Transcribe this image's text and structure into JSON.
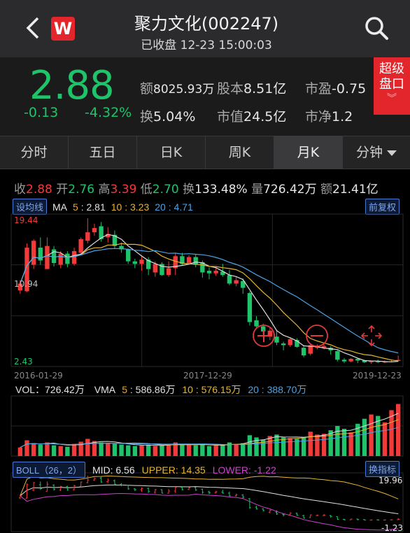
{
  "header": {
    "title": "聚力文化(002247)",
    "subtitle": "已收盘 12-23 15:00:03",
    "logo_letter": "W"
  },
  "quote": {
    "price": "2.88",
    "change": "-0.13",
    "change_pct": "-4.32%",
    "turnover_amount_label": "额",
    "turnover_amount": "8025.93万",
    "share_capital_label": "股本",
    "share_capital": "8.51亿",
    "pe_label": "市盈",
    "pe": "-0.75",
    "turnover_rate_label": "换",
    "turnover_rate": "5.04%",
    "market_cap_label": "市值",
    "market_cap": "24.5亿",
    "pb_label": "市净",
    "pb": "1.2",
    "super_badge_line1": "超级",
    "super_badge_line2": "盘口"
  },
  "tabs": [
    {
      "label": "分时"
    },
    {
      "label": "五日"
    },
    {
      "label": "日K"
    },
    {
      "label": "周K"
    },
    {
      "label": "月K"
    },
    {
      "label": "分钟"
    }
  ],
  "active_tab": "月K",
  "kline_info": {
    "close_label": "收",
    "close": "2.88",
    "open_label": "开",
    "open": "2.76",
    "high_label": "高",
    "high": "3.39",
    "low_label": "低",
    "low": "2.70",
    "turnover_label": "换",
    "turnover": "133.48%",
    "volume_label": "量",
    "volume": "726.42万",
    "amount_label": "额",
    "amount": "21.41亿"
  },
  "ma_bar": {
    "settings_button": "设均线",
    "ma_label": "MA",
    "ma5": "5 : 2.81",
    "ma10": "10 : 3.23",
    "ma20": "20 : 4.71",
    "adjust_button": "前复权"
  },
  "price_axis": {
    "top": "19.44",
    "mid": "10.94",
    "bottom": "2.43"
  },
  "date_axis": [
    "2016-01-29",
    "2017-12-29",
    "2019-12-23"
  ],
  "volume_bar": {
    "vol": "VOL：726.42万",
    "vma_label": "VMA",
    "vma5": "5 : 586.86万",
    "vma10": "10 : 576.15万",
    "vma20": "20 : 388.70万"
  },
  "boll_bar": {
    "name": "BOLL（26，2）",
    "mid": "MID: 6.56",
    "upper": "UPPER: 14.35",
    "lower": "LOWER: -1.22",
    "switch_button": "换指标",
    "axis_top": "19.96",
    "axis_bottom": "-1.23"
  },
  "colors": {
    "up": "#f23a3a",
    "down": "#1fc36a",
    "ma5": "#e0e0e0",
    "ma10": "#e8b530",
    "ma20": "#4aa3e8",
    "boll_upper": "#e8b530",
    "boll_lower": "#d040d0",
    "brand": "#e3262b"
  },
  "chart_data": {
    "type": "candlestick",
    "period": "monthly",
    "x_range": [
      "2016-01-29",
      "2019-12-23"
    ],
    "price_range": [
      2.43,
      19.44
    ],
    "candles": [
      {
        "o": 11.0,
        "c": 11.8,
        "h": 12.2,
        "l": 10.6
      },
      {
        "o": 10.9,
        "c": 16.0,
        "h": 16.5,
        "l": 10.8
      },
      {
        "o": 14.0,
        "c": 16.8,
        "h": 17.0,
        "l": 13.5
      },
      {
        "o": 16.0,
        "c": 14.5,
        "h": 17.2,
        "l": 14.0
      },
      {
        "o": 13.5,
        "c": 16.2,
        "h": 17.2,
        "l": 13.5
      },
      {
        "o": 15.8,
        "c": 14.2,
        "h": 16.2,
        "l": 13.8
      },
      {
        "o": 14.0,
        "c": 15.3,
        "h": 15.6,
        "l": 13.6
      },
      {
        "o": 15.3,
        "c": 14.1,
        "h": 15.6,
        "l": 13.7
      },
      {
        "o": 14.1,
        "c": 15.6,
        "h": 16.0,
        "l": 13.9
      },
      {
        "o": 15.4,
        "c": 17.0,
        "h": 17.2,
        "l": 15.1
      },
      {
        "o": 16.8,
        "c": 17.8,
        "h": 19.44,
        "l": 16.5
      },
      {
        "o": 17.8,
        "c": 18.3,
        "h": 18.8,
        "l": 17.4
      },
      {
        "o": 18.5,
        "c": 17.0,
        "h": 19.0,
        "l": 16.7
      },
      {
        "o": 17.2,
        "c": 17.6,
        "h": 18.4,
        "l": 16.6
      },
      {
        "o": 17.5,
        "c": 16.2,
        "h": 18.0,
        "l": 15.9
      },
      {
        "o": 16.2,
        "c": 15.8,
        "h": 16.6,
        "l": 15.4
      },
      {
        "o": 15.8,
        "c": 14.4,
        "h": 15.9,
        "l": 14.1
      },
      {
        "o": 14.4,
        "c": 14.1,
        "h": 14.7,
        "l": 13.6
      },
      {
        "o": 14.1,
        "c": 14.6,
        "h": 15.0,
        "l": 13.3
      },
      {
        "o": 14.6,
        "c": 13.5,
        "h": 14.9,
        "l": 12.8
      },
      {
        "o": 13.1,
        "c": 14.1,
        "h": 14.4,
        "l": 12.6
      },
      {
        "o": 14.1,
        "c": 12.8,
        "h": 14.3,
        "l": 12.7
      },
      {
        "o": 12.8,
        "c": 13.6,
        "h": 14.4,
        "l": 12.6
      },
      {
        "o": 13.6,
        "c": 15.0,
        "h": 15.3,
        "l": 12.8
      },
      {
        "o": 15.0,
        "c": 14.1,
        "h": 15.4,
        "l": 13.9
      },
      {
        "o": 14.2,
        "c": 14.9,
        "h": 15.1,
        "l": 14.0
      },
      {
        "o": 14.9,
        "c": 14.0,
        "h": 15.2,
        "l": 13.7
      },
      {
        "o": 14.3,
        "c": 13.1,
        "h": 14.5,
        "l": 12.5
      },
      {
        "o": 13.3,
        "c": 13.0,
        "h": 13.7,
        "l": 12.3
      },
      {
        "o": 13.0,
        "c": 13.3,
        "h": 13.7,
        "l": 12.7
      },
      {
        "o": 13.2,
        "c": 12.8,
        "h": 14.1,
        "l": 12.6
      },
      {
        "o": 12.8,
        "c": 11.8,
        "h": 13.4,
        "l": 11.6
      },
      {
        "o": 11.8,
        "c": 12.2,
        "h": 12.6,
        "l": 11.5
      },
      {
        "o": 12.1,
        "c": 11.3,
        "h": 12.4,
        "l": 10.6
      },
      {
        "o": 10.7,
        "c": 7.3,
        "h": 10.9,
        "l": 6.9
      },
      {
        "o": 7.5,
        "c": 6.8,
        "h": 8.0,
        "l": 6.6
      },
      {
        "o": 6.8,
        "c": 6.2,
        "h": 7.1,
        "l": 5.9
      },
      {
        "o": 5.6,
        "c": 6.3,
        "h": 6.6,
        "l": 5.2
      },
      {
        "o": 5.6,
        "c": 4.9,
        "h": 6.3,
        "l": 4.6
      },
      {
        "o": 4.8,
        "c": 4.6,
        "h": 5.0,
        "l": 4.0
      },
      {
        "o": 4.6,
        "c": 5.3,
        "h": 5.5,
        "l": 4.4
      },
      {
        "o": 5.2,
        "c": 4.4,
        "h": 5.4,
        "l": 4.3
      },
      {
        "o": 4.3,
        "c": 3.4,
        "h": 4.6,
        "l": 3.2
      },
      {
        "o": 3.6,
        "c": 4.6,
        "h": 4.7,
        "l": 3.4
      },
      {
        "o": 4.3,
        "c": 4.4,
        "h": 4.7,
        "l": 4.1
      },
      {
        "o": 4.3,
        "c": 4.5,
        "h": 4.9,
        "l": 4.1
      },
      {
        "o": 4.3,
        "c": 4.0,
        "h": 4.5,
        "l": 3.5
      },
      {
        "o": 3.9,
        "c": 2.9,
        "h": 4.0,
        "l": 2.7
      },
      {
        "o": 2.9,
        "c": 2.7,
        "h": 3.1,
        "l": 2.5
      },
      {
        "o": 2.7,
        "c": 3.0,
        "h": 3.1,
        "l": 2.6
      },
      {
        "o": 3.0,
        "c": 2.8,
        "h": 3.1,
        "l": 2.5
      },
      {
        "o": 2.8,
        "c": 2.6,
        "h": 2.9,
        "l": 2.5
      },
      {
        "o": 2.6,
        "c": 2.7,
        "h": 2.8,
        "l": 2.43
      },
      {
        "o": 2.7,
        "c": 2.6,
        "h": 2.9,
        "l": 2.5
      },
      {
        "o": 2.6,
        "c": 2.66,
        "h": 2.8,
        "l": 2.5
      },
      {
        "o": 2.66,
        "c": 2.7,
        "h": 2.9,
        "l": 2.6
      },
      {
        "o": 2.76,
        "c": 2.88,
        "h": 3.39,
        "l": 2.7
      }
    ],
    "volume_range": [
      0,
      800
    ],
    "volumes": [
      120,
      220,
      180,
      160,
      190,
      150,
      140,
      130,
      170,
      200,
      240,
      210,
      190,
      180,
      170,
      160,
      150,
      140,
      150,
      160,
      140,
      150,
      160,
      190,
      170,
      160,
      150,
      160,
      140,
      150,
      160,
      190,
      170,
      180,
      290,
      260,
      230,
      280,
      300,
      260,
      250,
      240,
      260,
      340,
      300,
      310,
      360,
      420,
      380,
      330,
      450,
      520,
      580,
      560,
      470,
      640,
      726.42
    ],
    "boll_range": [
      -1.23,
      19.96
    ]
  }
}
